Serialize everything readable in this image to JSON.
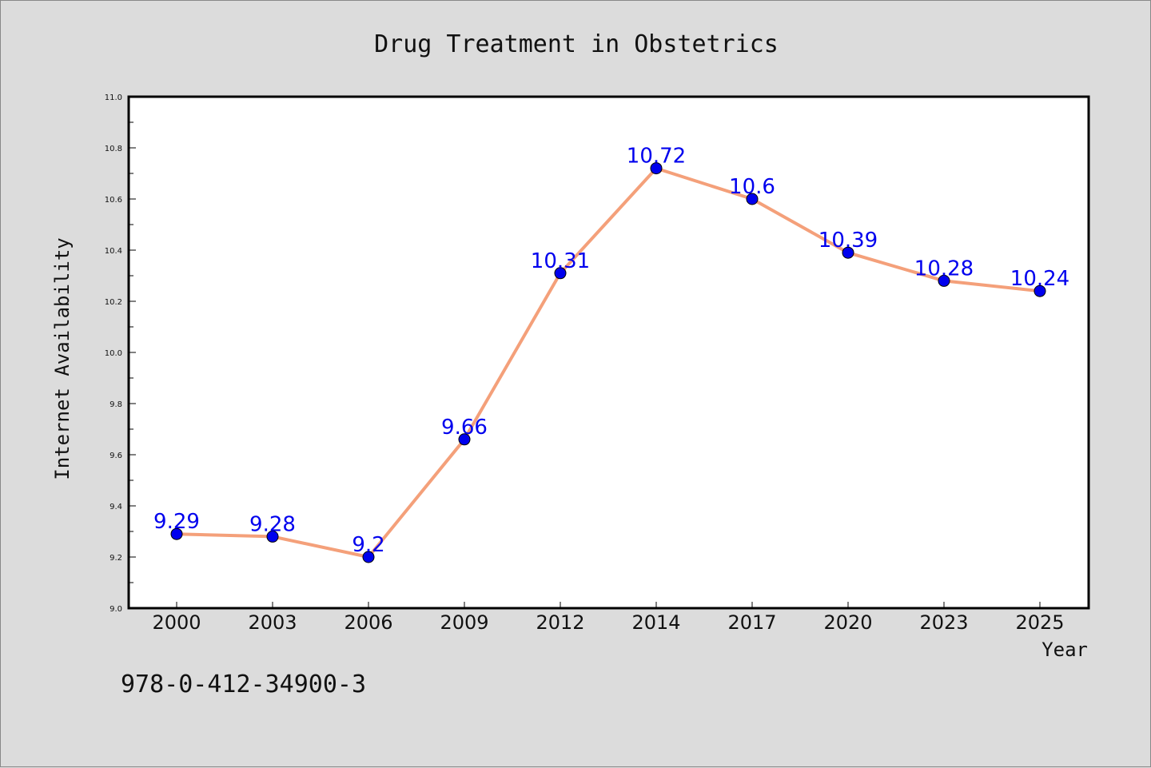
{
  "chart_data": {
    "type": "line",
    "title": "Drug Treatment in Obstetrics",
    "xlabel": "Year",
    "ylabel": "Internet Availability",
    "categories": [
      "2000",
      "2003",
      "2006",
      "2009",
      "2012",
      "2014",
      "2017",
      "2020",
      "2023",
      "2025"
    ],
    "series": [
      {
        "values": [
          9.29,
          9.28,
          9.2,
          9.66,
          10.31,
          10.72,
          10.6,
          10.39,
          10.28,
          10.24
        ],
        "labels": [
          "9.29",
          "9.28",
          "9.2",
          "9.66",
          "10.31",
          "10.72",
          "10.6",
          "10.39",
          "10.28",
          "10.24"
        ]
      }
    ],
    "ylim": [
      9.0,
      11.0
    ],
    "yticks": [
      "9.0",
      "9.2",
      "9.4",
      "9.6",
      "9.8",
      "10.0",
      "10.2",
      "10.4",
      "10.6",
      "10.8",
      "11.0"
    ],
    "grid": false,
    "colors": {
      "line": "#f4a07a",
      "marker": "#0000ee",
      "data_label": "#0000ee",
      "background": "#dcdcdc",
      "plot_area": "#ffffff"
    }
  },
  "footer": {
    "isbn": "978-0-412-34900-3"
  }
}
